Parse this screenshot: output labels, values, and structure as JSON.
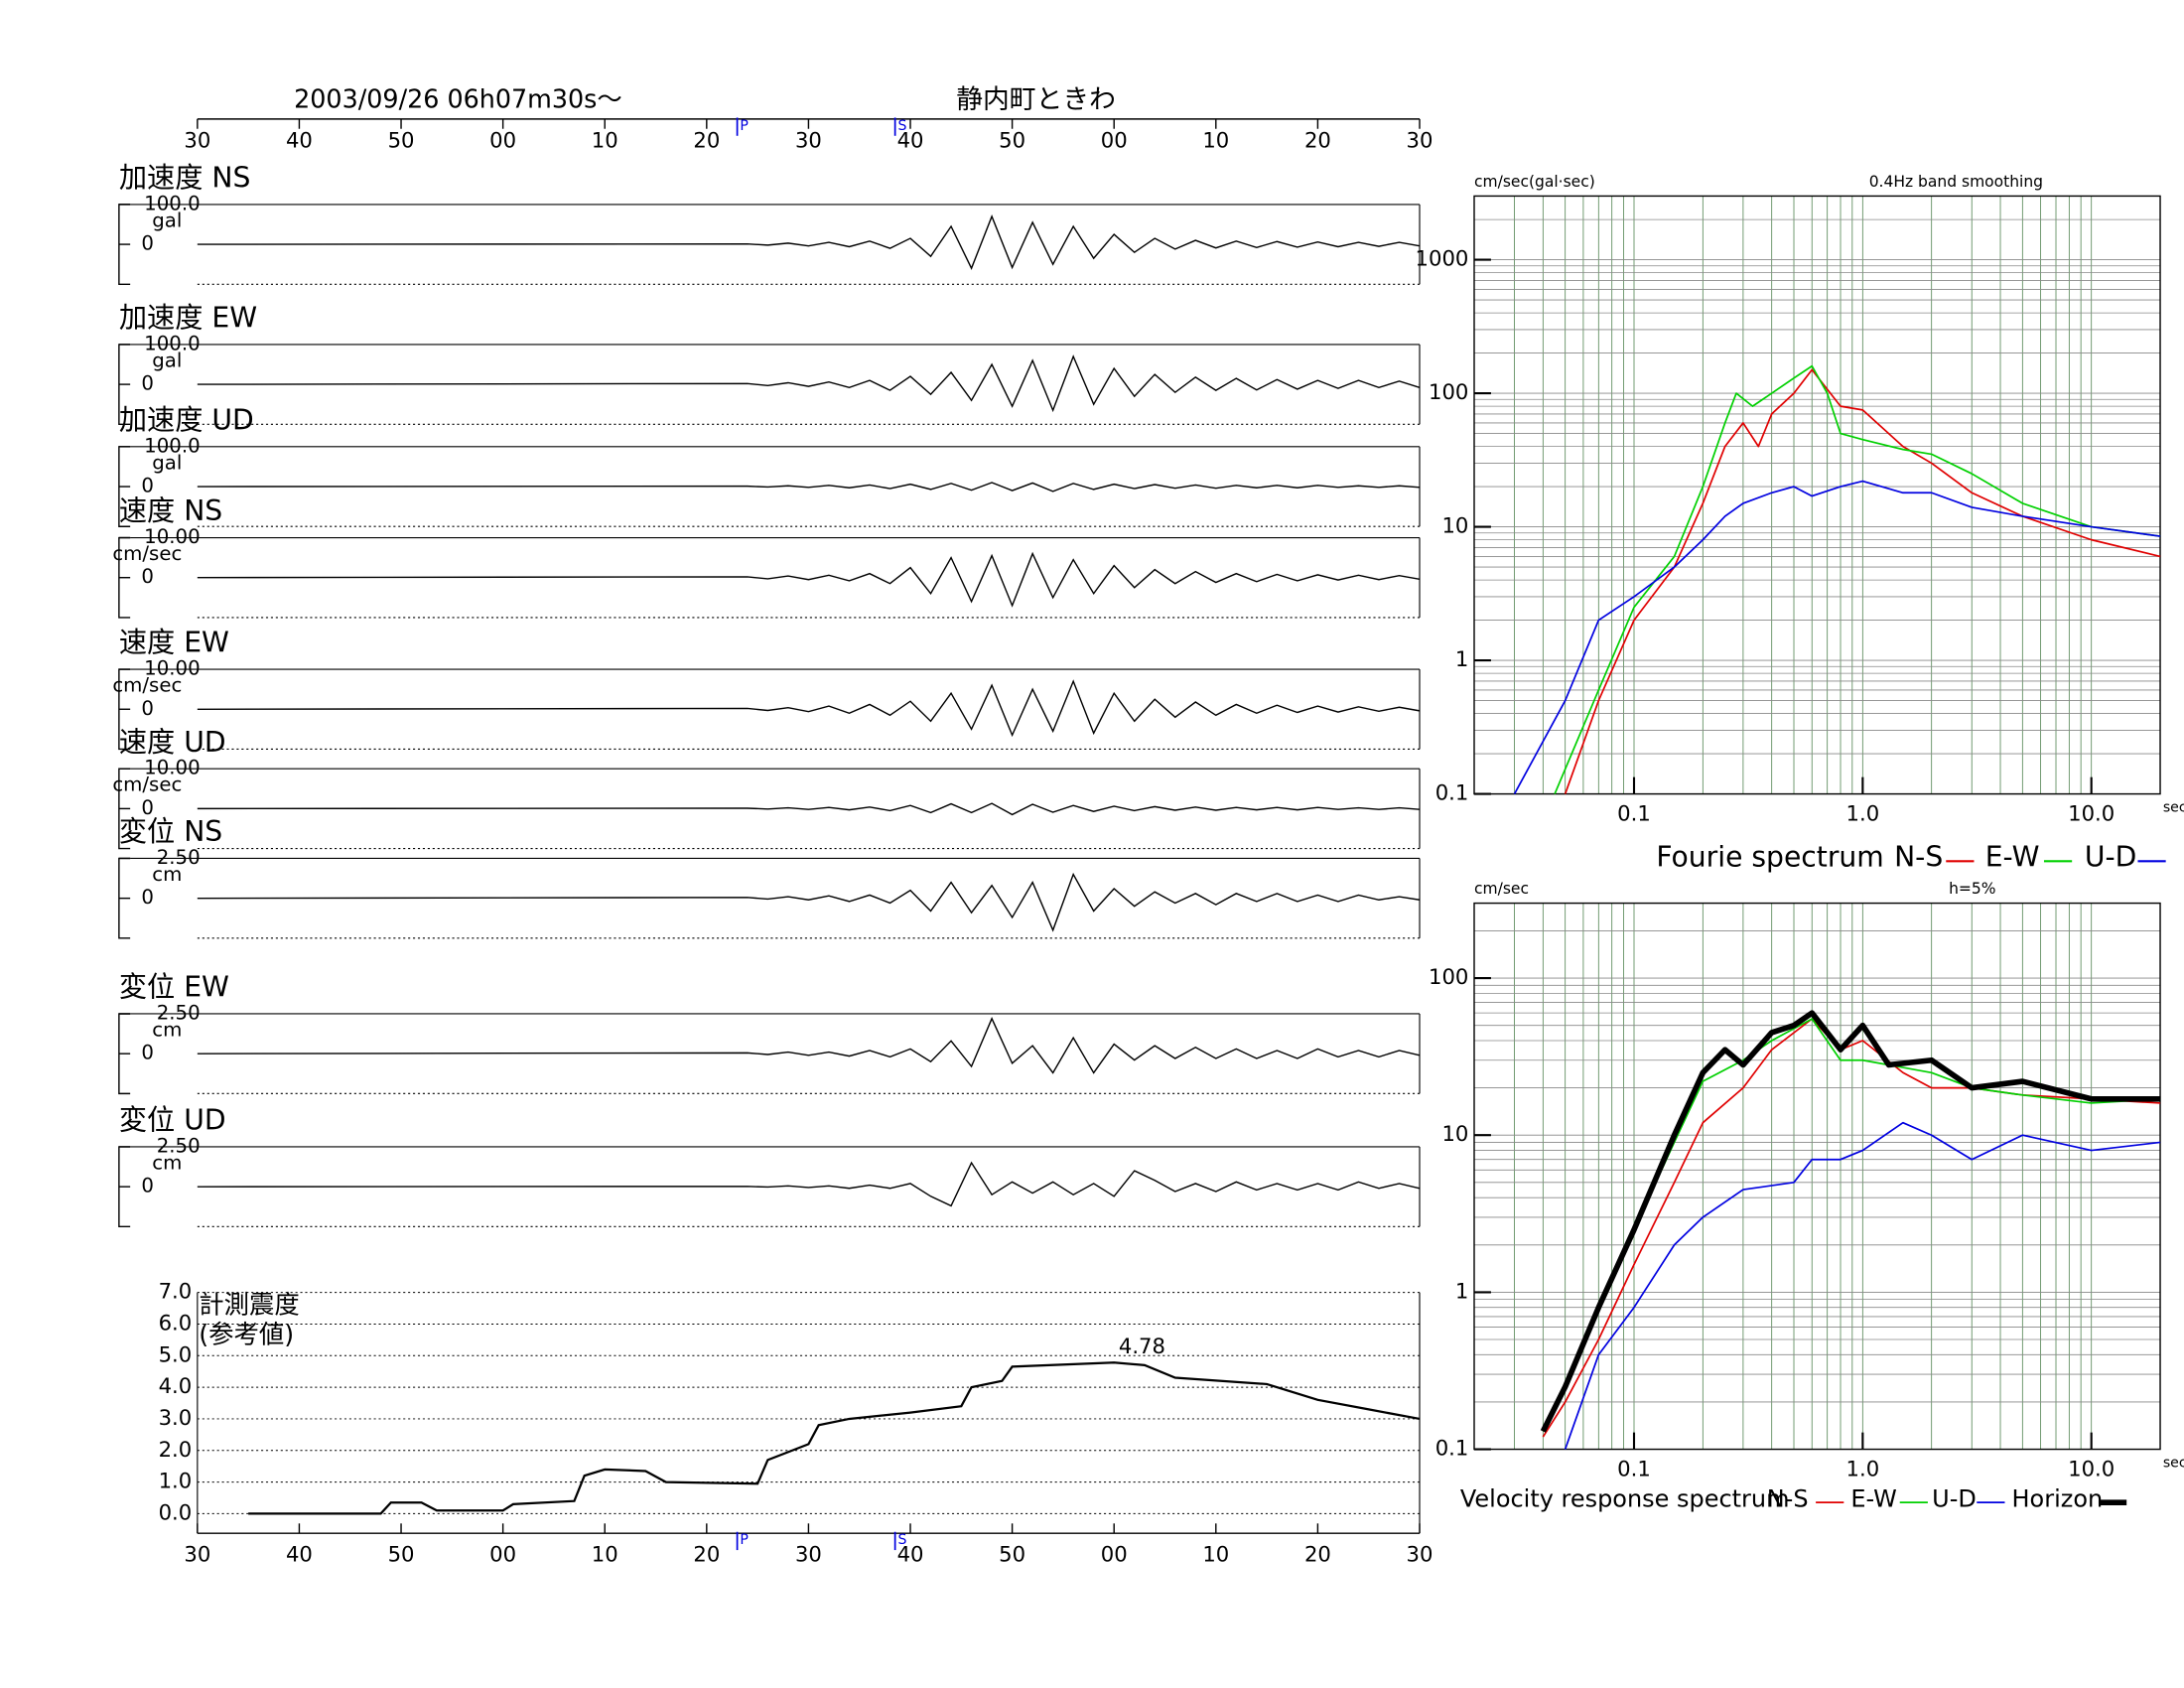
{
  "chart_data": [
    {
      "type": "waveform",
      "title": "静内町ときわ",
      "subtitle": "2003/09/26  06h07m30s～",
      "xlim": [
        0,
        120
      ],
      "xticks": [
        {
          "value": 0,
          "label": "30"
        },
        {
          "value": 10,
          "label": "40"
        },
        {
          "value": 20,
          "label": "50"
        },
        {
          "value": 30,
          "label": "00"
        },
        {
          "value": 40,
          "label": "10"
        },
        {
          "value": 50,
          "label": "20"
        },
        {
          "value": 60,
          "label": "30"
        },
        {
          "value": 70,
          "label": "40"
        },
        {
          "value": 80,
          "label": "50"
        },
        {
          "value": 90,
          "label": "00"
        },
        {
          "value": 100,
          "label": "10"
        },
        {
          "value": 110,
          "label": "20"
        },
        {
          "value": 120,
          "label": "30"
        }
      ],
      "markers": [
        {
          "label": "P",
          "x": 53
        },
        {
          "label": "S",
          "x": 68.5
        }
      ],
      "x": [
        0,
        54,
        56,
        58,
        60,
        62,
        64,
        66,
        68,
        70,
        72,
        74,
        76,
        78,
        80,
        82,
        84,
        86,
        88,
        90,
        92,
        94,
        96,
        98,
        100,
        102,
        104,
        106,
        108,
        110,
        112,
        114,
        116,
        118,
        120
      ],
      "panels": [
        {
          "label": "加速度 NS",
          "unit": "gal",
          "ylim": [
            -100,
            100
          ],
          "yticks": [
            {
              "value": 100,
              "label": "100.0"
            },
            0
          ],
          "values": [
            0,
            1,
            -2,
            3,
            -4,
            5,
            -6,
            8,
            -10,
            15,
            -30,
            45,
            -60,
            70,
            -58,
            55,
            -50,
            45,
            -35,
            25,
            -20,
            15,
            -12,
            10,
            -9,
            8,
            -8,
            7,
            -7,
            6,
            -6,
            5,
            -5,
            5,
            -4
          ]
        },
        {
          "label": "加速度 EW",
          "unit": "gal",
          "ylim": [
            -100,
            100
          ],
          "yticks": [
            {
              "value": 100,
              "label": "100.0"
            },
            0
          ],
          "values": [
            0,
            2,
            -3,
            4,
            -5,
            6,
            -8,
            10,
            -15,
            20,
            -25,
            30,
            -40,
            50,
            -55,
            60,
            -65,
            70,
            -50,
            40,
            -30,
            25,
            -20,
            18,
            -15,
            15,
            -14,
            12,
            -12,
            10,
            -10,
            10,
            -8,
            8,
            -8
          ]
        },
        {
          "label": "加速度 UD",
          "unit": "gal",
          "ylim": [
            -100,
            100
          ],
          "yticks": [
            {
              "value": 100,
              "label": "100.0"
            },
            0
          ],
          "values": [
            0,
            1,
            -1,
            2,
            -2,
            3,
            -3,
            4,
            -5,
            6,
            -7,
            8,
            -9,
            10,
            -10,
            9,
            -12,
            8,
            -7,
            6,
            -5,
            5,
            -4,
            4,
            -4,
            3,
            -3,
            3,
            -3,
            3,
            -2,
            2,
            -2,
            2,
            -2
          ]
        },
        {
          "label": "速度 NS",
          "unit": "cm/sec",
          "ylim": [
            -10,
            10
          ],
          "yticks": [
            {
              "value": 10,
              "label": "10.00"
            },
            0
          ],
          "values": [
            0,
            0.2,
            -0.3,
            0.4,
            -0.5,
            0.6,
            -0.8,
            1,
            -1.5,
            2.5,
            -4,
            5,
            -6,
            5.5,
            -7,
            6,
            -5,
            4.5,
            -4,
            3,
            -2.5,
            2,
            -1.5,
            1.5,
            -1.2,
            1,
            -1,
            0.8,
            -0.8,
            0.7,
            -0.6,
            0.6,
            -0.5,
            0.5,
            -0.4
          ]
        },
        {
          "label": "速度 EW",
          "unit": "cm/sec",
          "ylim": [
            -10,
            10
          ],
          "yticks": [
            {
              "value": 10,
              "label": "10.00"
            },
            0
          ],
          "values": [
            0,
            0.2,
            -0.3,
            0.4,
            -0.6,
            0.8,
            -1,
            1.2,
            -1.5,
            2,
            -3,
            4,
            -5,
            6,
            -6.5,
            5,
            -5.5,
            7,
            -6,
            4,
            -3,
            2.5,
            -2,
            1.8,
            -1.5,
            1.2,
            -1,
            1,
            -0.8,
            0.8,
            -0.7,
            0.6,
            -0.5,
            0.5,
            -0.4
          ]
        },
        {
          "label": "速度 UD",
          "unit": "cm/sec",
          "ylim": [
            -10,
            10
          ],
          "yticks": [
            {
              "value": 10,
              "label": "10.00"
            },
            0
          ],
          "values": [
            0,
            0.1,
            -0.1,
            0.2,
            -0.2,
            0.3,
            -0.3,
            0.4,
            -0.5,
            0.8,
            -1,
            1.2,
            -1,
            1.3,
            -1.5,
            1.1,
            -0.9,
            0.8,
            -0.7,
            0.6,
            -0.5,
            0.5,
            -0.4,
            0.4,
            -0.4,
            0.3,
            -0.3,
            0.3,
            -0.3,
            0.3,
            -0.2,
            0.2,
            -0.2,
            0.2,
            -0.2
          ]
        },
        {
          "label": "変位 NS",
          "unit": "cm",
          "ylim": [
            -2.5,
            2.5
          ],
          "yticks": [
            {
              "value": 2.5,
              "label": "2.50"
            },
            0
          ],
          "values": [
            0,
            0.05,
            -0.05,
            0.1,
            -0.1,
            0.15,
            -0.2,
            0.2,
            -0.3,
            0.5,
            -0.8,
            1,
            -0.9,
            0.8,
            -1.2,
            1,
            -2,
            1.5,
            -0.8,
            0.6,
            -0.5,
            0.4,
            -0.3,
            0.3,
            -0.4,
            0.3,
            -0.2,
            0.3,
            -0.2,
            0.2,
            -0.2,
            0.2,
            -0.1,
            0.1,
            -0.1
          ]
        },
        {
          "label": "変位 EW",
          "unit": "cm",
          "ylim": [
            -2.5,
            2.5
          ],
          "yticks": [
            {
              "value": 2.5,
              "label": "2.50"
            },
            0
          ],
          "values": [
            0,
            0.05,
            -0.05,
            0.1,
            -0.1,
            0.1,
            -0.15,
            0.2,
            -0.2,
            0.3,
            -0.5,
            0.8,
            -0.8,
            2.2,
            -0.6,
            0.5,
            -1.2,
            1,
            -1.2,
            0.6,
            -0.4,
            0.5,
            -0.3,
            0.4,
            -0.3,
            0.3,
            -0.3,
            0.2,
            -0.3,
            0.3,
            -0.2,
            0.2,
            -0.2,
            0.2,
            -0.1
          ]
        },
        {
          "label": "変位 UD",
          "unit": "cm",
          "ylim": [
            -2.5,
            2.5
          ],
          "yticks": [
            {
              "value": 2.5,
              "label": "2.50"
            },
            0
          ],
          "values": [
            0,
            0.02,
            -0.02,
            0.05,
            -0.05,
            0.05,
            -0.1,
            0.1,
            -0.1,
            0.2,
            -0.6,
            -1.2,
            1.5,
            -0.5,
            0.3,
            -0.4,
            0.3,
            -0.5,
            0.2,
            -0.6,
            1,
            0.4,
            -0.3,
            0.2,
            -0.3,
            0.3,
            -0.2,
            0.2,
            -0.2,
            0.2,
            -0.2,
            0.3,
            -0.1,
            0.2,
            -0.1
          ]
        }
      ]
    },
    {
      "type": "line",
      "title": "計測震度",
      "subtitle": "(参考値)",
      "color": "#000000",
      "xlim": [
        0,
        120
      ],
      "ylim": [
        0,
        7
      ],
      "yticks": [
        {
          "value": 0,
          "label": "0.0"
        },
        {
          "value": 1,
          "label": "1.0"
        },
        {
          "value": 2,
          "label": "2.0"
        },
        {
          "value": 3,
          "label": "3.0"
        },
        {
          "value": 4,
          "label": "4.0"
        },
        {
          "value": 5,
          "label": "5.0"
        },
        {
          "value": 6,
          "label": "6.0"
        },
        {
          "value": 7,
          "label": "7.0"
        }
      ],
      "grid": true,
      "x": [
        5,
        18,
        19,
        22,
        23.5,
        30,
        31,
        37,
        38,
        40,
        44,
        46,
        55,
        56,
        60,
        61,
        64,
        70,
        75,
        76,
        79,
        80,
        90,
        93,
        96,
        105,
        110,
        115,
        120
      ],
      "values": [
        0,
        0,
        0.35,
        0.35,
        0.1,
        0.1,
        0.3,
        0.4,
        1.2,
        1.4,
        1.35,
        1,
        0.95,
        1.7,
        2.2,
        2.8,
        3,
        3.2,
        3.4,
        4,
        4.2,
        4.65,
        4.78,
        4.7,
        4.3,
        4.1,
        3.6,
        3.3,
        3
      ],
      "annotations": [
        {
          "text": "4.78",
          "x": 90,
          "y": 4.78
        }
      ]
    },
    {
      "type": "loglog",
      "title": "Fourie spectrum",
      "y_label": "cm/sec(gal·sec)",
      "x_label": "sec",
      "note": "0.4Hz band smoothing",
      "xlim": [
        0.02,
        20
      ],
      "ylim": [
        0.1,
        3000
      ],
      "xticks": [
        0.1,
        {
          "value": 1,
          "label": "1.0"
        },
        {
          "value": 10,
          "label": "10.0"
        }
      ],
      "yticks": [
        1000,
        100,
        10,
        1,
        0.1
      ],
      "grid": true,
      "series": [
        {
          "name": "N-S",
          "color": "#e00000",
          "x": [
            0.05,
            0.07,
            0.1,
            0.15,
            0.2,
            0.25,
            0.3,
            0.35,
            0.4,
            0.5,
            0.6,
            0.8,
            1,
            1.5,
            2,
            3,
            5,
            10,
            20
          ],
          "values": [
            0.1,
            0.5,
            2,
            5,
            15,
            40,
            60,
            40,
            70,
            100,
            150,
            80,
            75,
            40,
            30,
            18,
            12,
            8,
            6
          ]
        },
        {
          "name": "E-W",
          "color": "#00d000",
          "x": [
            0.045,
            0.07,
            0.1,
            0.15,
            0.2,
            0.25,
            0.28,
            0.33,
            0.4,
            0.5,
            0.6,
            0.7,
            0.8,
            1,
            1.5,
            2,
            3,
            5,
            10,
            20
          ],
          "values": [
            0.1,
            0.6,
            2.5,
            6,
            20,
            60,
            100,
            80,
            100,
            130,
            160,
            100,
            50,
            45,
            38,
            35,
            25,
            15,
            10,
            8.5
          ]
        },
        {
          "name": "U-D",
          "color": "#0000e0",
          "x": [
            0.03,
            0.05,
            0.07,
            0.1,
            0.15,
            0.2,
            0.25,
            0.3,
            0.4,
            0.5,
            0.6,
            0.8,
            1,
            1.5,
            2,
            3,
            5,
            10,
            20
          ],
          "values": [
            0.1,
            0.5,
            2,
            3,
            5,
            8,
            12,
            15,
            18,
            20,
            17,
            20,
            22,
            18,
            18,
            14,
            12,
            10,
            8.5
          ]
        }
      ]
    },
    {
      "type": "loglog",
      "title": "Velocity response spectrum",
      "y_label": "cm/sec",
      "x_label": "sec",
      "note": "h=5%",
      "xlim": [
        0.02,
        20
      ],
      "ylim": [
        0.1,
        300
      ],
      "xticks": [
        0.1,
        {
          "value": 1,
          "label": "1.0"
        },
        {
          "value": 10,
          "label": "10.0"
        }
      ],
      "yticks": [
        100,
        10,
        1,
        0.1
      ],
      "grid": true,
      "series": [
        {
          "name": "N-S",
          "color": "#e00000",
          "width": 1.2,
          "x": [
            0.04,
            0.05,
            0.07,
            0.1,
            0.15,
            0.2,
            0.3,
            0.4,
            0.6,
            0.8,
            1,
            1.5,
            2,
            3,
            5,
            10,
            20
          ],
          "values": [
            0.12,
            0.2,
            0.5,
            1.5,
            5,
            12,
            20,
            35,
            55,
            35,
            40,
            25,
            20,
            20,
            18,
            17,
            16
          ]
        },
        {
          "name": "E-W",
          "color": "#00d000",
          "width": 1.2,
          "x": [
            0.04,
            0.05,
            0.07,
            0.1,
            0.15,
            0.2,
            0.3,
            0.4,
            0.6,
            0.8,
            1,
            2,
            3,
            5,
            10,
            20
          ],
          "values": [
            0.13,
            0.25,
            0.8,
            2.5,
            9,
            22,
            30,
            40,
            55,
            30,
            30,
            25,
            20,
            18,
            16,
            17
          ]
        },
        {
          "name": "U-D",
          "color": "#0000e0",
          "width": 1.2,
          "x": [
            0.05,
            0.07,
            0.1,
            0.15,
            0.2,
            0.3,
            0.5,
            0.6,
            0.8,
            1,
            1.5,
            2,
            3,
            5,
            10,
            20
          ],
          "values": [
            0.1,
            0.4,
            0.8,
            2,
            3,
            4.5,
            5,
            7,
            7,
            8,
            12,
            10,
            7,
            10,
            8,
            9
          ]
        },
        {
          "name": "Horizon",
          "color": "#000000",
          "width": 4,
          "x": [
            0.04,
            0.05,
            0.07,
            0.1,
            0.15,
            0.2,
            0.25,
            0.3,
            0.4,
            0.5,
            0.6,
            0.8,
            1,
            1.3,
            2,
            3,
            5,
            10,
            20
          ],
          "values": [
            0.13,
            0.25,
            0.8,
            2.5,
            10,
            25,
            35,
            28,
            45,
            50,
            60,
            35,
            50,
            28,
            30,
            20,
            22,
            17,
            17
          ]
        }
      ]
    }
  ]
}
